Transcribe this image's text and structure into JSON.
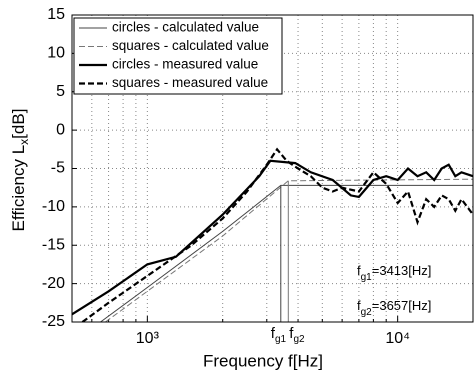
{
  "chart_data": {
    "type": "line",
    "xlabel": "Frequency f[Hz]",
    "ylabel": {
      "base": "Efficiency L",
      "sub": "x",
      "rest": "[dB]"
    },
    "xlog": true,
    "grid": true,
    "legend": "upper left",
    "xlim": [
      500,
      20000
    ],
    "ylim": [
      -25,
      15
    ],
    "xticks": [
      {
        "value": 1000,
        "label": "10³"
      },
      {
        "value": 10000,
        "label": "10⁴"
      }
    ],
    "xminorticks": [
      500,
      600,
      700,
      800,
      900,
      2000,
      3000,
      4000,
      5000,
      6000,
      7000,
      8000,
      9000,
      20000
    ],
    "yticks": [
      -25,
      -20,
      -15,
      -10,
      -5,
      0,
      5,
      10,
      15
    ],
    "series": [
      {
        "name": "circles - calculated value",
        "color": "#444444",
        "style": "solid",
        "width": 1,
        "x": [
          650,
          1000,
          2000,
          3413,
          20000
        ],
        "values": [
          -25,
          -20.5,
          -13.2,
          -7.2,
          -7.2
        ]
      },
      {
        "name": "squares - calculated value",
        "color": "#777777",
        "style": "dashed",
        "width": 1,
        "x": [
          680,
          1000,
          2000,
          3657,
          20000
        ],
        "values": [
          -25,
          -21,
          -13.8,
          -6.6,
          -6.4
        ]
      },
      {
        "name": "circles - measured value",
        "color": "#000000",
        "style": "solid",
        "width": 2.2,
        "x": [
          500,
          700,
          1000,
          1300,
          2000,
          2800,
          3100,
          3900,
          4500,
          5500,
          6500,
          7000,
          8000,
          9000,
          10000,
          11000,
          12000,
          13000,
          14000,
          15000,
          16000,
          17000,
          18000,
          20000
        ],
        "values": [
          -24,
          -21,
          -17.5,
          -16.5,
          -11,
          -6,
          -4,
          -4.3,
          -5.5,
          -6.5,
          -8.5,
          -8.7,
          -6.5,
          -6,
          -6.5,
          -5,
          -6,
          -5.5,
          -6.5,
          -5,
          -4.5,
          -6,
          -5.5,
          -6
        ]
      },
      {
        "name": "squares - measured value",
        "color": "#000000",
        "style": "dashed",
        "width": 2.2,
        "x": [
          550,
          700,
          1000,
          1500,
          2000,
          2500,
          3000,
          3300,
          3600,
          4000,
          4500,
          5000,
          5500,
          6000,
          7000,
          8000,
          9000,
          10000,
          11000,
          11500,
          12000,
          13000,
          14000,
          15000,
          16000,
          17000,
          18000,
          20000
        ],
        "values": [
          -25,
          -22.5,
          -19,
          -15,
          -11.5,
          -8,
          -4.5,
          -2.5,
          -4,
          -5,
          -6,
          -7.5,
          -8,
          -7.5,
          -8,
          -5.5,
          -7,
          -9.5,
          -8,
          -10,
          -12,
          -9,
          -10,
          -8.5,
          -9,
          -10.5,
          -9,
          -11
        ]
      }
    ],
    "markers": [
      {
        "x": 3413,
        "base": "f",
        "sub": "g1"
      },
      {
        "x": 3657,
        "base": "f",
        "sub": "g2"
      }
    ],
    "annotations": [
      {
        "base": "f",
        "sub": "g1",
        "rest": "=3413[Hz]"
      },
      {
        "base": "f",
        "sub": "g2",
        "rest": "=3657[Hz]"
      }
    ]
  }
}
